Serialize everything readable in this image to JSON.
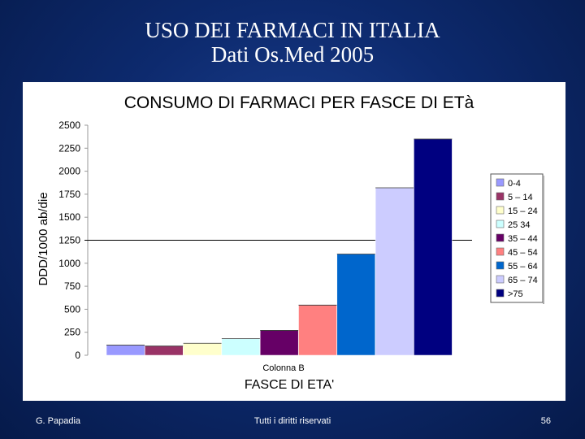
{
  "slide": {
    "title_line1": "USO DEI FARMACI IN ITALIA",
    "title_line2": "Dati  Os.Med 2005"
  },
  "footer": {
    "author": "G. Papadia",
    "rights": "Tutti i diritti riservati",
    "page_number": "56"
  },
  "chart_data": {
    "type": "bar",
    "title": "CONSUMO DI FARMACI PER FASCE DI ETà",
    "ylabel": "DDD/1000 ab/die",
    "xlabel": "FASCE DI ETA'",
    "x_category_label": "Colonna B",
    "ylim": [
      0,
      2500
    ],
    "yticks": [
      0,
      250,
      500,
      750,
      1000,
      1250,
      1500,
      1750,
      2000,
      2250,
      2500
    ],
    "reference_line": 1250,
    "legend_position": "right",
    "grid": false,
    "series": [
      {
        "name": "0-4",
        "value": 110,
        "color": "#9999ff"
      },
      {
        "name": "5 – 14",
        "value": 100,
        "color": "#993366"
      },
      {
        "name": "15 – 24",
        "value": 130,
        "color": "#ffffcc"
      },
      {
        "name": "25   34",
        "value": 180,
        "color": "#ccffff"
      },
      {
        "name": "35 – 44",
        "value": 270,
        "color": "#660066"
      },
      {
        "name": "45 – 54",
        "value": 545,
        "color": "#ff8080"
      },
      {
        "name": "55 – 64",
        "value": 1100,
        "color": "#0066cc"
      },
      {
        "name": "65 – 74",
        "value": 1820,
        "color": "#ccccff"
      },
      {
        "name": ">75",
        "value": 2350,
        "color": "#000080"
      }
    ]
  }
}
